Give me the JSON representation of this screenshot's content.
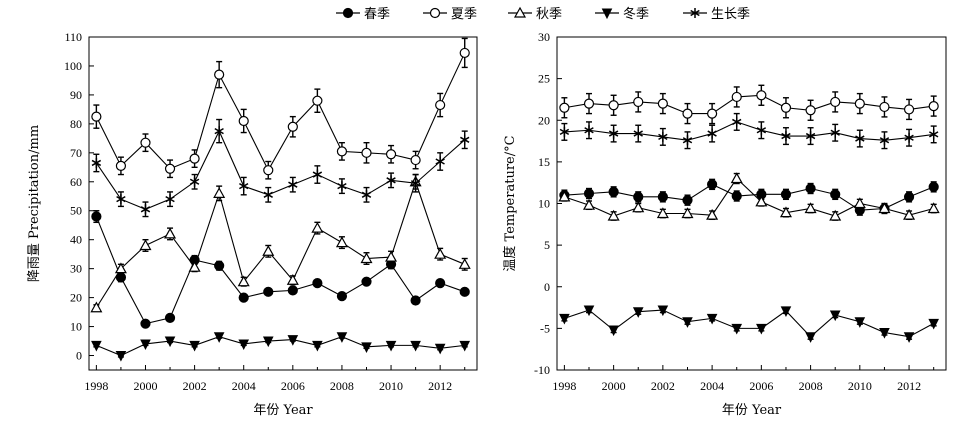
{
  "legend": {
    "items": [
      {
        "label": "春季",
        "marker": "circle-filled"
      },
      {
        "label": "夏季",
        "marker": "circle-open"
      },
      {
        "label": "秋季",
        "marker": "triangle-open"
      },
      {
        "label": "冬季",
        "marker": "triangle-down-filled"
      },
      {
        "label": "生长季",
        "marker": "star"
      }
    ]
  },
  "chart_data": [
    {
      "type": "line",
      "title": "",
      "xlabel": "年份 Year",
      "ylabel": "降雨量 Precipitation/mm",
      "x": [
        1998,
        1999,
        2000,
        2001,
        2002,
        2003,
        2004,
        2005,
        2006,
        2007,
        2008,
        2009,
        2010,
        2011,
        2012,
        2013
      ],
      "xticks": [
        1998,
        2000,
        2002,
        2004,
        2006,
        2008,
        2010,
        2012
      ],
      "xlim": [
        1997.7,
        2013.5
      ],
      "ylim": [
        -5,
        110
      ],
      "yticks": [
        0,
        10,
        20,
        30,
        40,
        50,
        60,
        70,
        80,
        90,
        100,
        110
      ],
      "grid": false,
      "error_bars": true,
      "series": [
        {
          "name": "春季",
          "marker": "circle-filled",
          "values": [
            48,
            27,
            11,
            13,
            33,
            31,
            20,
            22,
            22.5,
            25,
            20.5,
            25.5,
            31.5,
            19,
            25,
            22
          ],
          "errors": [
            2,
            1.5,
            1,
            1,
            1.5,
            1.5,
            1,
            1,
            1,
            1,
            1,
            1,
            1.5,
            1,
            1,
            1
          ]
        },
        {
          "name": "夏季",
          "marker": "circle-open",
          "values": [
            82.5,
            65.5,
            73.5,
            64.5,
            68,
            97,
            81,
            64,
            79,
            88,
            70.5,
            70,
            69.5,
            67.5,
            86.5,
            104.5
          ],
          "errors": [
            4,
            3,
            3,
            3,
            3,
            4.5,
            4,
            3,
            3.5,
            4,
            3,
            3.5,
            3,
            3,
            4,
            5
          ]
        },
        {
          "name": "秋季",
          "marker": "triangle-open",
          "values": [
            16.5,
            30,
            38,
            42,
            30.5,
            56,
            25.5,
            36,
            26,
            44,
            39,
            33.5,
            34,
            60,
            35,
            31.5
          ],
          "errors": [
            1,
            1.5,
            2,
            2,
            1.5,
            2.5,
            1.5,
            2,
            1.5,
            2,
            2,
            2,
            2,
            2.5,
            2,
            2
          ]
        },
        {
          "name": "冬季",
          "marker": "triangle-down-filled",
          "values": [
            3.5,
            0,
            4,
            5,
            3.5,
            6.5,
            4,
            5,
            5.5,
            3.5,
            6.5,
            3,
            3.5,
            3.5,
            2.5,
            3.5
          ],
          "errors": [
            0.5,
            0.5,
            0.5,
            0.5,
            0.5,
            0.5,
            0.5,
            0.5,
            0.5,
            0.5,
            0.5,
            0.5,
            0.5,
            0.5,
            0.5,
            0.5
          ]
        },
        {
          "name": "生长季",
          "marker": "star",
          "values": [
            66.5,
            54,
            50.5,
            54,
            60,
            77.5,
            58.5,
            55.5,
            59,
            62.5,
            58.5,
            55.5,
            60.5,
            59.5,
            67,
            74.5
          ],
          "errors": [
            3,
            2.5,
            2.5,
            2.5,
            2.5,
            4,
            3,
            2.5,
            2.5,
            3,
            2.5,
            2.5,
            2.5,
            3,
            3,
            3
          ]
        }
      ]
    },
    {
      "type": "line",
      "title": "",
      "xlabel": "年份 Year",
      "ylabel": "温度 Temperature/°C",
      "x": [
        1998,
        1999,
        2000,
        2001,
        2002,
        2003,
        2004,
        2005,
        2006,
        2007,
        2008,
        2009,
        2010,
        2011,
        2012,
        2013
      ],
      "xticks": [
        1998,
        2000,
        2002,
        2004,
        2006,
        2008,
        2010,
        2012
      ],
      "xlim": [
        1997.7,
        2013.5
      ],
      "ylim": [
        -10,
        30
      ],
      "yticks": [
        -10,
        -5,
        0,
        5,
        10,
        15,
        20,
        25,
        30
      ],
      "grid": false,
      "error_bars": true,
      "series": [
        {
          "name": "春季",
          "marker": "circle-filled",
          "values": [
            11,
            11.2,
            11.4,
            10.8,
            10.8,
            10.4,
            12.3,
            10.9,
            11.1,
            11.1,
            11.8,
            11.1,
            9.2,
            9.4,
            10.8,
            12
          ],
          "errors": [
            0.6,
            0.6,
            0.6,
            0.6,
            0.6,
            0.6,
            0.6,
            0.6,
            0.6,
            0.6,
            0.6,
            0.6,
            0.6,
            0.6,
            0.6,
            0.6
          ]
        },
        {
          "name": "夏季",
          "marker": "circle-open",
          "values": [
            21.5,
            22,
            21.8,
            22.2,
            22,
            20.8,
            20.8,
            22.8,
            23,
            21.5,
            21.2,
            22.2,
            22,
            21.6,
            21.3,
            21.7
          ],
          "errors": [
            1.2,
            1.2,
            1.2,
            1.2,
            1.2,
            1.2,
            1.2,
            1.2,
            1.2,
            1.2,
            1.2,
            1.2,
            1.2,
            1.2,
            1.2,
            1.2
          ]
        },
        {
          "name": "秋季",
          "marker": "triangle-open",
          "values": [
            10.8,
            9.8,
            8.5,
            9.5,
            8.8,
            8.8,
            8.6,
            13,
            10.2,
            8.9,
            9.4,
            8.5,
            10,
            9.4,
            8.6,
            9.4
          ],
          "errors": [
            0.5,
            0.5,
            0.5,
            0.5,
            0.5,
            0.5,
            0.5,
            0.6,
            0.5,
            0.5,
            0.5,
            0.5,
            0.5,
            0.5,
            0.5,
            0.5
          ]
        },
        {
          "name": "冬季",
          "marker": "triangle-down-filled",
          "values": [
            -3.8,
            -2.8,
            -5.2,
            -3,
            -2.8,
            -4.2,
            -3.8,
            -5,
            -5,
            -2.9,
            -6,
            -3.4,
            -4.2,
            -5.5,
            -6,
            -4.4
          ],
          "errors": [
            0.3,
            0.3,
            0.3,
            0.3,
            0.3,
            0.3,
            0.3,
            0.3,
            0.3,
            0.3,
            0.3,
            0.3,
            0.3,
            0.3,
            0.3,
            0.3
          ]
        },
        {
          "name": "生长季",
          "marker": "star",
          "values": [
            18.6,
            18.8,
            18.4,
            18.4,
            18,
            17.6,
            18.4,
            19.8,
            18.8,
            18.1,
            18.1,
            18.5,
            17.8,
            17.6,
            17.9,
            18.3
          ],
          "errors": [
            1,
            1,
            1,
            1,
            1,
            1,
            1,
            1,
            1,
            1,
            1,
            1,
            1,
            1,
            1,
            1
          ]
        }
      ]
    }
  ]
}
